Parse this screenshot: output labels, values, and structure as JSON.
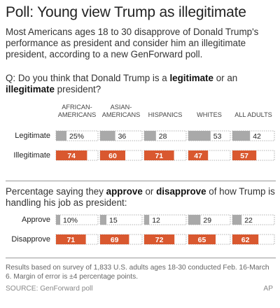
{
  "title": "Poll: Young view Trump as illegitimate",
  "intro": "Most Americans ages 18 to 30 disapprove of Donald Trump's performance as president and consider him an illegitimate president, according to a new GenForward poll.",
  "question1": {
    "prefix": "Q: Do you think that Donald Trump is a ",
    "bold1": "legitimate",
    "mid": " or an ",
    "bold2": "illegitimate",
    "suffix": " president?"
  },
  "question2": {
    "prefix": "Percentage saying they ",
    "bold1": "approve",
    "mid": " or ",
    "bold2": "disapprove",
    "suffix": " of how Trump is handling his job as president:"
  },
  "note": "Results based on survey of 1,833 U.S. adults ages 18-30 conducted Feb. 16-March 6. Margin of error is ±4 percentage points.",
  "source": "SOURCE: GenForward poll",
  "credit": "AP",
  "colors": {
    "gray": "#a9a9a9",
    "orange": "#d9582f"
  },
  "chart_data": [
    {
      "type": "bar",
      "groups": [
        {
          "label_lines": [
            "AFRICAN-",
            "AMERICANS"
          ]
        },
        {
          "label_lines": [
            "ASIAN-",
            "AMERICANS"
          ]
        },
        {
          "label_lines": [
            "HISPANICS"
          ]
        },
        {
          "label_lines": [
            "WHITES"
          ]
        },
        {
          "label_lines": [
            "ALL ADULTS"
          ]
        }
      ],
      "rows": [
        {
          "name": "Legitimate",
          "color": "#a9a9a9",
          "values": [
            25,
            36,
            28,
            53,
            42
          ],
          "labels": [
            "25%",
            "36",
            "28",
            "53",
            "42"
          ]
        },
        {
          "name": "Illegitimate",
          "color": "#d9582f",
          "values": [
            74,
            60,
            71,
            47,
            57
          ],
          "labels": [
            "74",
            "60",
            "71",
            "47",
            "57"
          ]
        }
      ],
      "ylim": [
        0,
        100
      ]
    },
    {
      "type": "bar",
      "rows": [
        {
          "name": "Approve",
          "color": "#a9a9a9",
          "values": [
            10,
            15,
            12,
            29,
            22
          ],
          "labels": [
            "10%",
            "15",
            "12",
            "29",
            "22"
          ]
        },
        {
          "name": "Disapprove",
          "color": "#d9582f",
          "values": [
            71,
            69,
            72,
            65,
            62
          ],
          "labels": [
            "71",
            "69",
            "72",
            "65",
            "62"
          ]
        }
      ],
      "ylim": [
        0,
        100
      ]
    }
  ]
}
